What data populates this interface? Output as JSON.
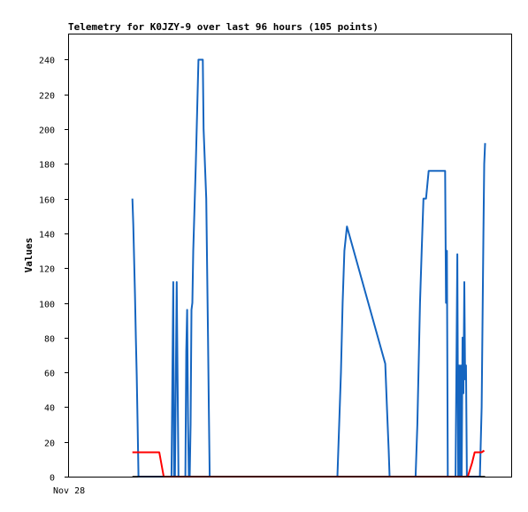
{
  "chart_data": {
    "type": "line",
    "title": "Telemetry for K0JZY-9 over last 96 hours (105 points)",
    "xlabel": "",
    "ylabel": "Values",
    "x_tick_labels": [
      {
        "label": "Nov 28",
        "t": 0
      }
    ],
    "xlim": [
      0,
      510
    ],
    "ylim": [
      0,
      255
    ],
    "y_ticks": [
      0,
      20,
      40,
      60,
      80,
      100,
      120,
      140,
      160,
      180,
      200,
      220,
      240
    ],
    "grid": false,
    "legend": "none",
    "colors": {
      "series_blue": "#1565C0",
      "series_red": "#FF0000",
      "series_black": "#000000",
      "axis": "#000000"
    },
    "series": [
      {
        "color_key": "series_blue",
        "points": [
          [
            74,
            160
          ],
          [
            75,
            145
          ],
          [
            77,
            105
          ],
          [
            78,
            80
          ],
          [
            79,
            58
          ],
          [
            80,
            30
          ],
          [
            81,
            0
          ],
          [
            119,
            0
          ],
          [
            120,
            56
          ],
          [
            121,
            112
          ],
          [
            122,
            0
          ],
          [
            123,
            0
          ],
          [
            124,
            56
          ],
          [
            125,
            112
          ],
          [
            126,
            56
          ],
          [
            127,
            0
          ],
          [
            128,
            0
          ],
          [
            135,
            0
          ],
          [
            136,
            72
          ],
          [
            137,
            96
          ],
          [
            138,
            32
          ],
          [
            139,
            0
          ],
          [
            140,
            0
          ],
          [
            141,
            30
          ],
          [
            142,
            96
          ],
          [
            143,
            100
          ],
          [
            144,
            130
          ],
          [
            147,
            180
          ],
          [
            150,
            240
          ],
          [
            155,
            240
          ],
          [
            156,
            200
          ],
          [
            159,
            160
          ],
          [
            160,
            120
          ],
          [
            161,
            80
          ],
          [
            162,
            40
          ],
          [
            163,
            0
          ],
          [
            310,
            0
          ],
          [
            312,
            30
          ],
          [
            314,
            60
          ],
          [
            316,
            100
          ],
          [
            318,
            130
          ],
          [
            321,
            144
          ],
          [
            365,
            65
          ],
          [
            367,
            40
          ],
          [
            369,
            15
          ],
          [
            370,
            0
          ],
          [
            400,
            0
          ],
          [
            402,
            30
          ],
          [
            405,
            100
          ],
          [
            407,
            130
          ],
          [
            409,
            160
          ],
          [
            412,
            160
          ],
          [
            415,
            176
          ],
          [
            434,
            176
          ],
          [
            435,
            100
          ],
          [
            436,
            130
          ],
          [
            437,
            0
          ],
          [
            438,
            0
          ],
          [
            446,
            0
          ],
          [
            447,
            64
          ],
          [
            448,
            128
          ],
          [
            449,
            0
          ],
          [
            450,
            64
          ],
          [
            451,
            0
          ],
          [
            452,
            64
          ],
          [
            453,
            0
          ],
          [
            454,
            80
          ],
          [
            455,
            48
          ],
          [
            456,
            112
          ],
          [
            457,
            56
          ],
          [
            458,
            64
          ],
          [
            459,
            0
          ],
          [
            460,
            0
          ],
          [
            474,
            0
          ],
          [
            476,
            40
          ],
          [
            477,
            90
          ],
          [
            478,
            140
          ],
          [
            479,
            180
          ],
          [
            480,
            192
          ]
        ]
      },
      {
        "color_key": "series_red",
        "points": [
          [
            74,
            14
          ],
          [
            105,
            14
          ],
          [
            110,
            0
          ],
          [
            460,
            0
          ],
          [
            465,
            8
          ],
          [
            468,
            14
          ],
          [
            476,
            14
          ],
          [
            479,
            15
          ]
        ]
      },
      {
        "color_key": "series_black",
        "points": [
          [
            74,
            0
          ],
          [
            480,
            0
          ]
        ]
      }
    ]
  }
}
